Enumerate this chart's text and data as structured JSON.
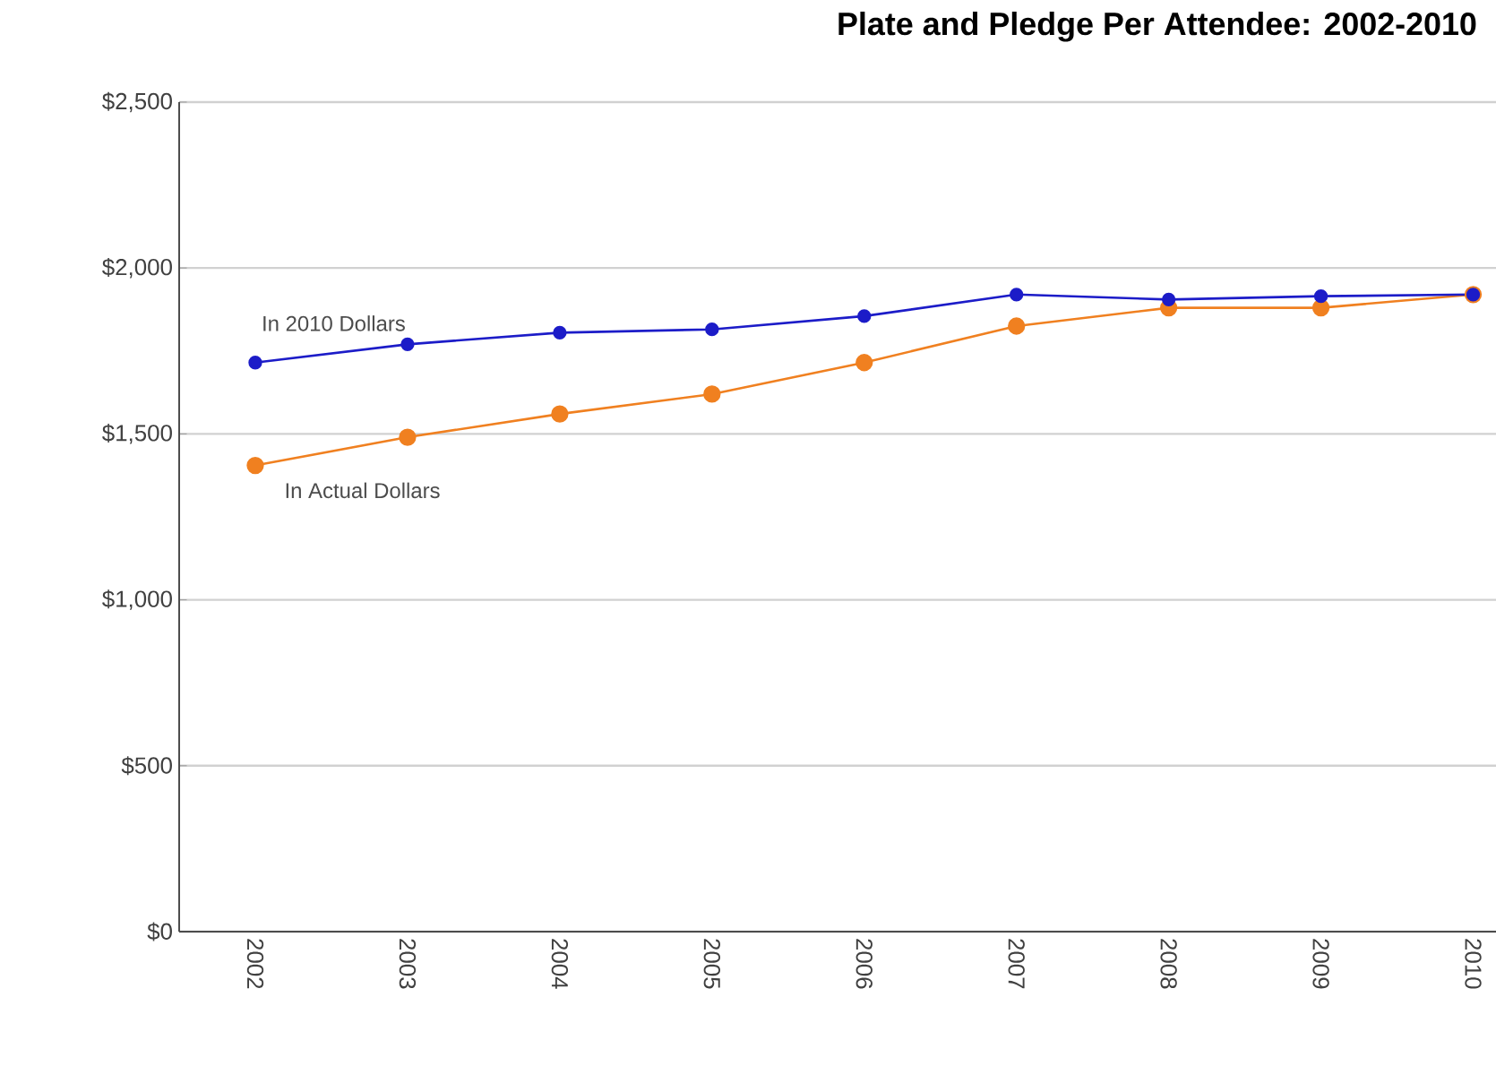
{
  "chart_data": {
    "type": "line",
    "title": "Plate and Pledge Per Attendee: 2002-2010",
    "categories": [
      "2002",
      "2003",
      "2004",
      "2005",
      "2006",
      "2007",
      "2008",
      "2009",
      "2010"
    ],
    "series": [
      {
        "name": "In 2010 Dollars",
        "color": "#1c1cc8",
        "values": [
          1715,
          1770,
          1805,
          1815,
          1855,
          1920,
          1905,
          1915,
          1920
        ]
      },
      {
        "name": "In Actual Dollars",
        "color": "#f08020",
        "values": [
          1405,
          1490,
          1560,
          1620,
          1715,
          1825,
          1880,
          1880,
          1920
        ]
      }
    ],
    "ylim": [
      0,
      2500
    ],
    "yticks": [
      {
        "value": 0,
        "label": "$0"
      },
      {
        "value": 500,
        "label": "$500"
      },
      {
        "value": 1000,
        "label": "$1,000"
      },
      {
        "value": 1500,
        "label": "$1,500"
      },
      {
        "value": 2000,
        "label": "$2,000"
      },
      {
        "value": 2500,
        "label": "$2,500"
      }
    ],
    "grid": "y",
    "marker": "circle",
    "line_style": "solid",
    "legend": false
  }
}
